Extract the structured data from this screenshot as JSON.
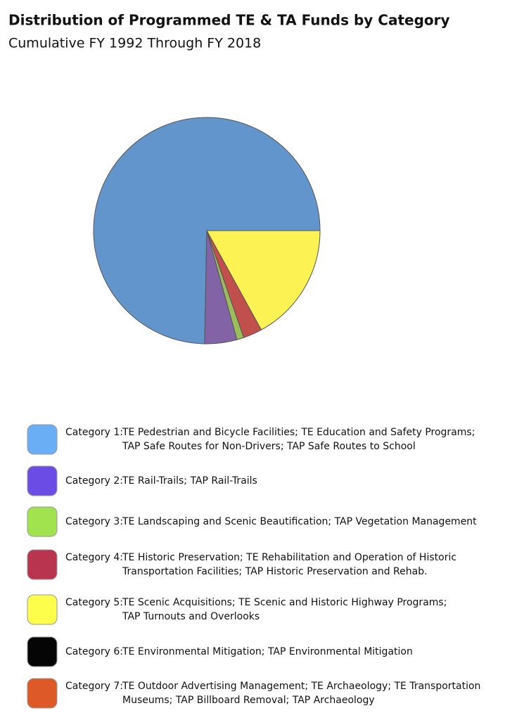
{
  "chart_data": {
    "type": "pie",
    "title": "Distribution of Programmed TE & TA Funds by Category",
    "subtitle": "Cumulative FY 1992 Through FY 2018",
    "categories": [
      "Category 1:",
      "Category 2:",
      "Category 3:",
      "Category 4:",
      "Category 5:",
      "Category 6:",
      "Category 7:"
    ],
    "descriptions": [
      [
        "TE Pedestrian and Bicycle Facilities; TE Education and Safety Programs;",
        "TAP Safe Routes for Non-Drivers; TAP Safe Routes to School"
      ],
      [
        "TE Rail-Trails; TAP Rail-Trails"
      ],
      [
        "TE Landscaping and Scenic Beautification; TAP Vegetation Management"
      ],
      [
        "TE Historic Preservation; TE Rehabilitation and Operation of Historic",
        "Transportation Facilities; TAP Historic Preservation and Rehab."
      ],
      [
        "TE Scenic Acquisitions; TE Scenic and Historic Highway Programs;",
        "TAP Turnouts and Overlooks"
      ],
      [
        "TE Environmental Mitigation; TAP Environmental Mitigation"
      ],
      [
        "TE Outdoor Advertising Management; TE Archaeology; TE Transportation",
        "Museums; TAP Billboard Removal; TAP Archaeology"
      ]
    ],
    "values": [
      74.7,
      4.6,
      1.0,
      2.7,
      17.0,
      0,
      0
    ],
    "colors": [
      "#6195cb",
      "#8264a6",
      "#9cbd5b",
      "#c1504d",
      "#fdf254",
      "#000000",
      "#e0622a"
    ],
    "legend_colors": [
      "#6aaef5",
      "#6b4de6",
      "#a0e34f",
      "#b8344f",
      "#fdfd4b",
      "#050505",
      "#dd5a28"
    ]
  }
}
